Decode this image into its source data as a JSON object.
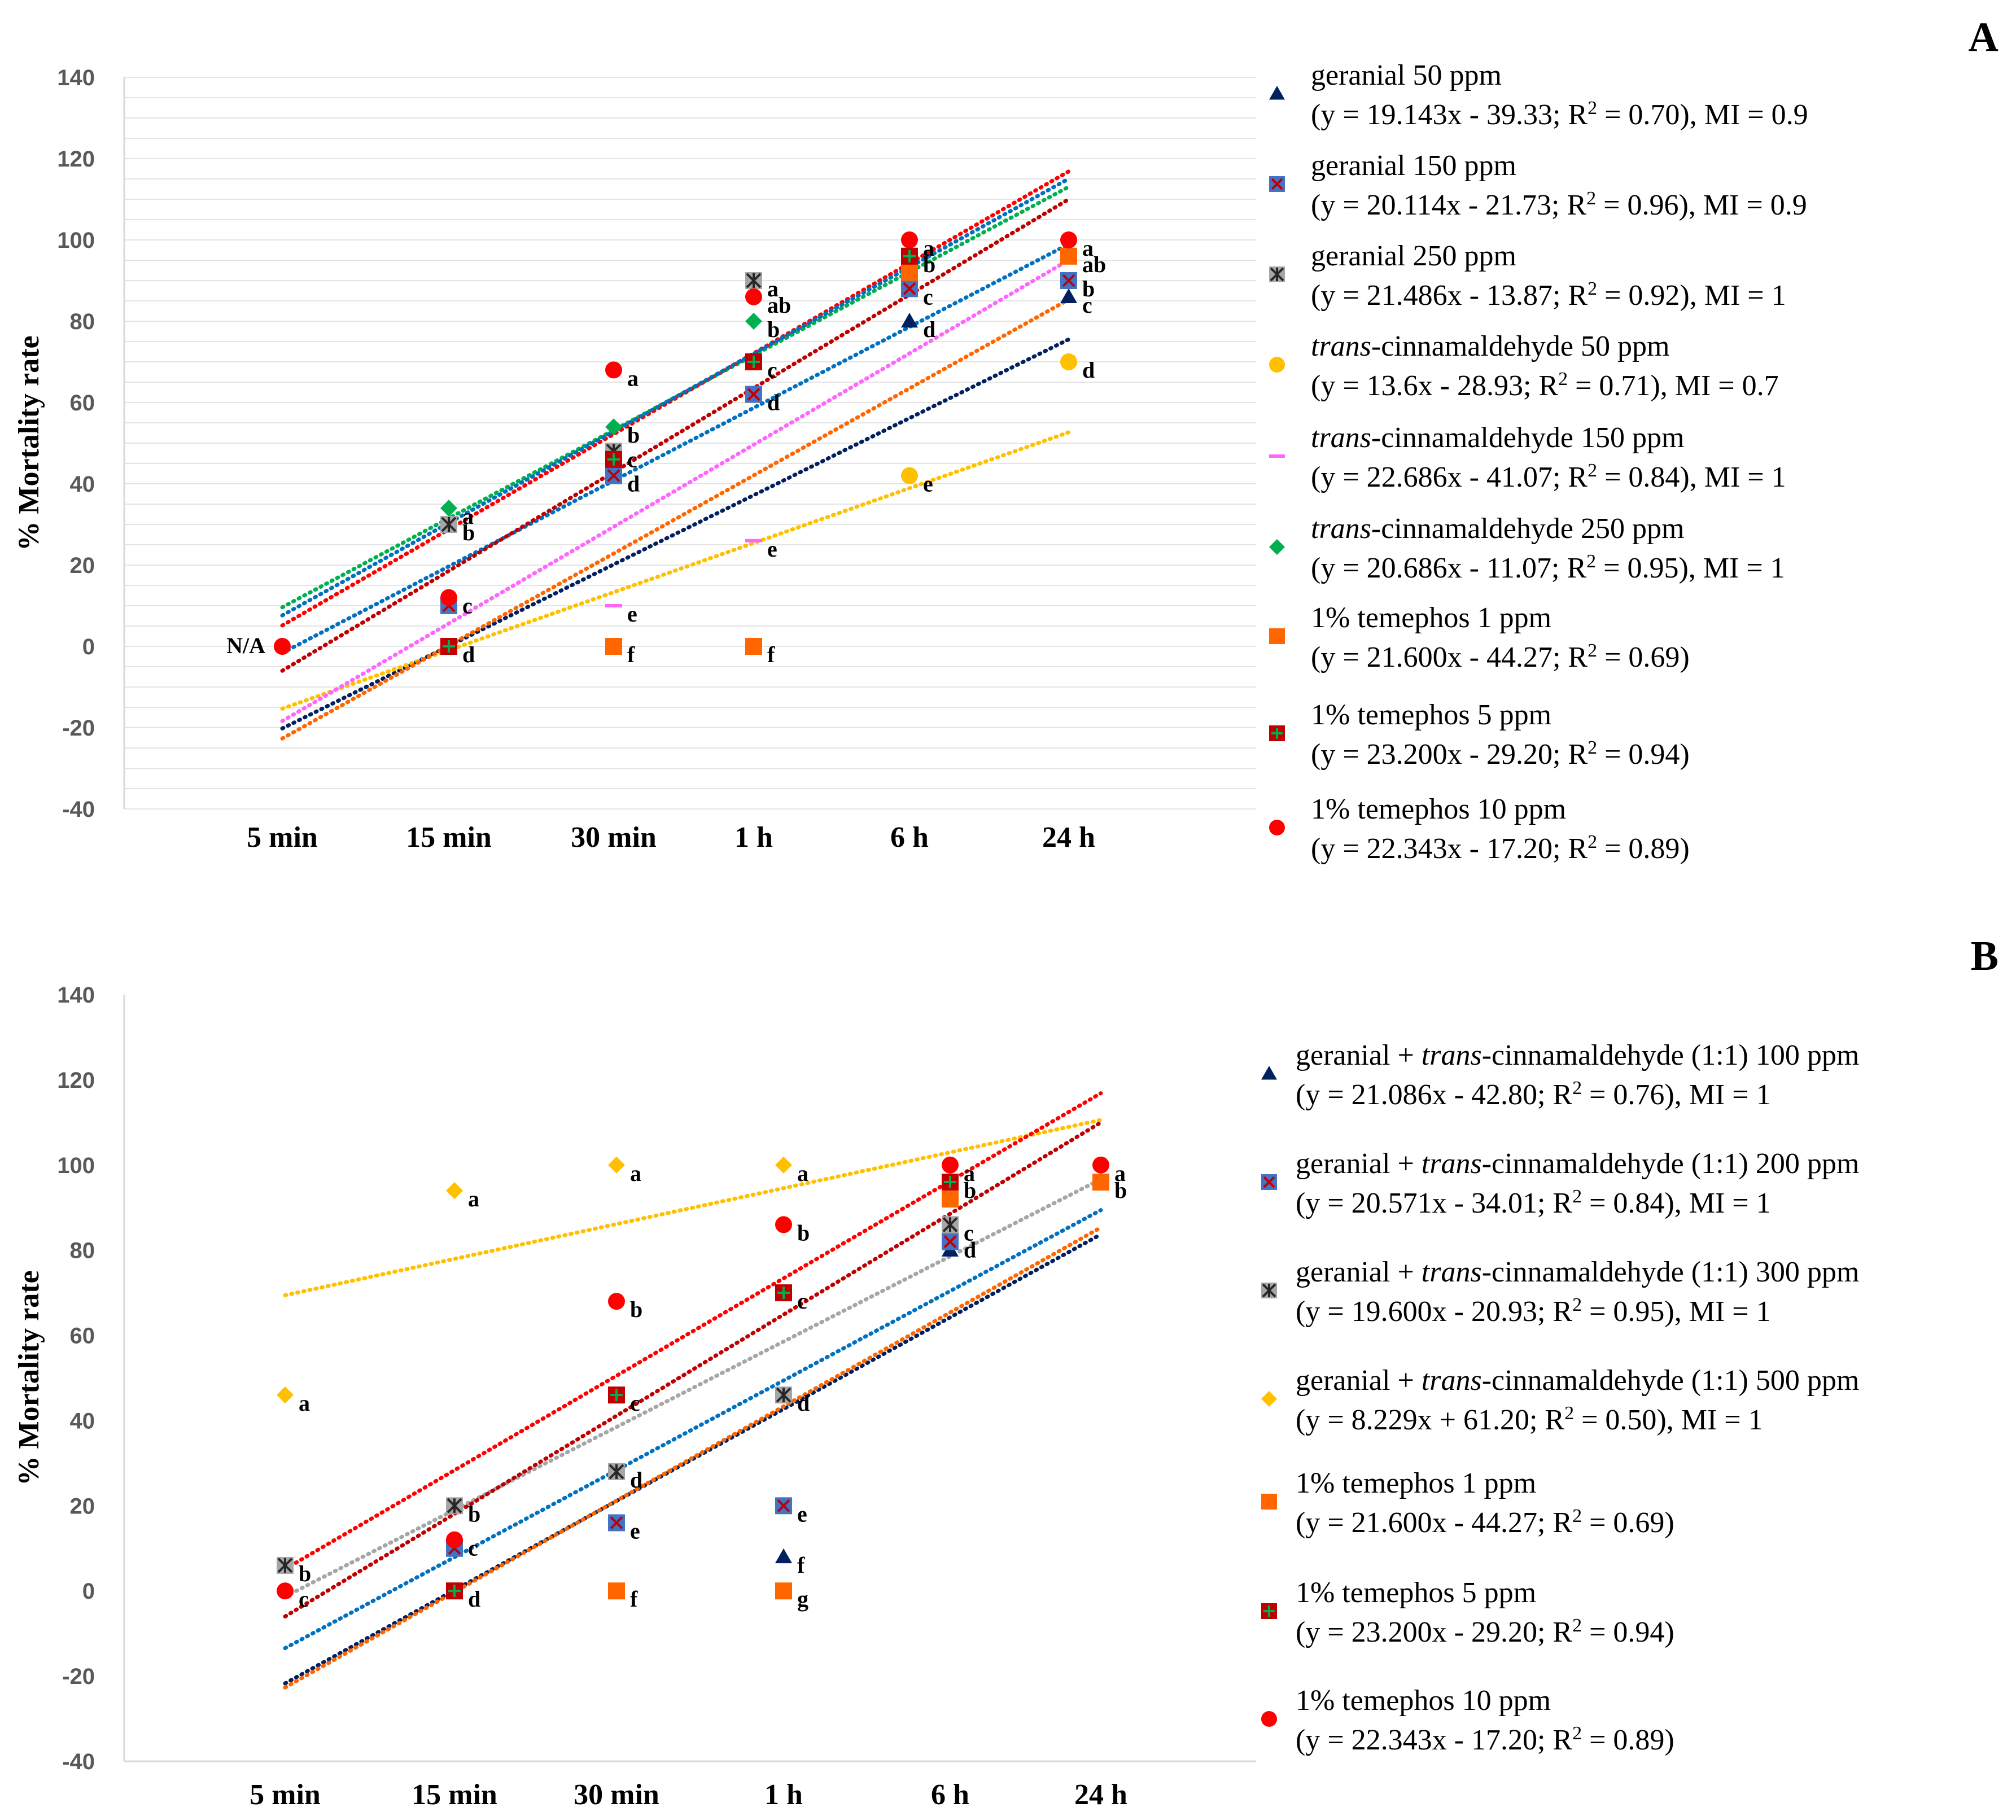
{
  "chart_data": [
    {
      "panel": "A",
      "type": "scatter",
      "ylabel": "% Mortality  rate",
      "xlabel": "",
      "ylim": [
        -40,
        140
      ],
      "yticks": [
        -40,
        -20,
        0,
        20,
        40,
        60,
        80,
        100,
        120,
        140
      ],
      "categories": [
        "5 min",
        "15 min",
        "30 min",
        "1 h",
        "6 h",
        "24 h"
      ],
      "grid": true,
      "legend_position": "right",
      "series": [
        {
          "name": "geranial 50 ppm",
          "eq": "(y = 19.143x - 39.33; R",
          "r2": " = 0.70), MI = 0.9",
          "marker": "triangle",
          "color": "#002060",
          "values": [
            null,
            null,
            null,
            null,
            80,
            86
          ],
          "labels": [
            null,
            null,
            null,
            null,
            "d",
            "c"
          ],
          "trend": [
            19.143,
            -39.33
          ]
        },
        {
          "name": "geranial 150 ppm",
          "eq": "(y = 20.114x - 21.73; R",
          "r2": " = 0.96), MI = 0.9",
          "marker": "xsquare",
          "color": "#4472C4",
          "values": [
            null,
            10,
            42,
            62,
            88,
            90
          ],
          "labels": [
            null,
            null,
            "d",
            "d",
            "c",
            "b"
          ],
          "trend": [
            20.114,
            -21.73
          ]
        },
        {
          "name": "geranial 250 ppm",
          "eq": "(y = 21.486x - 13.87; R",
          "r2": " = 0.92), MI = 1",
          "marker": "asterisk",
          "color": "#404040",
          "values": [
            null,
            30,
            48,
            90,
            null,
            null
          ],
          "labels": [
            null,
            "b",
            "c",
            "a",
            null,
            null
          ],
          "trend": [
            null,
            null
          ]
        },
        {
          "name": "trans-cinnamaldehyde 50 ppm",
          "italic": "trans",
          "rest": "-cinnamaldehyde 50 ppm",
          "eq": "(y = 13.6x - 28.93; R",
          "r2": " = 0.71), MI = 0.7",
          "marker": "circle",
          "color": "#FFC000",
          "values": [
            null,
            null,
            null,
            null,
            42,
            70
          ],
          "labels": [
            null,
            null,
            null,
            null,
            "e",
            "d"
          ],
          "trend": [
            13.6,
            -28.93
          ]
        },
        {
          "name": "trans-cinnamaldehyde 150 ppm",
          "italic": "trans",
          "rest": "-cinnamaldehyde 150 ppm",
          "eq": "(y = 22.686x - 41.07; R",
          "r2": " = 0.84), MI = 1",
          "marker": "dash",
          "color": "#FF66FF",
          "values": [
            null,
            null,
            10,
            26,
            null,
            null
          ],
          "labels": [
            null,
            null,
            "e",
            "e",
            null,
            null
          ],
          "trend": [
            22.686,
            -41.07
          ]
        },
        {
          "name": "trans-cinnamaldehyde 250 ppm",
          "italic": "trans",
          "rest": "-cinnamaldehyde 250 ppm",
          "eq": "(y = 20.686x - 11.07; R",
          "r2": " = 0.95), MI = 1",
          "marker": "diamond",
          "color": "#00B050",
          "values": [
            null,
            34,
            54,
            80,
            96,
            null
          ],
          "labels": [
            null,
            "a",
            "b",
            "b",
            null,
            null
          ],
          "trend": [
            20.686,
            -11.07
          ]
        },
        {
          "name": "1% temephos 1 ppm",
          "eq": "(y = 21.600x - 44.27; R",
          "r2": " = 0.69)",
          "marker": "square",
          "color": "#FF6600",
          "values": [
            null,
            null,
            0,
            0,
            92,
            96
          ],
          "labels": [
            null,
            null,
            "f",
            "f",
            null,
            "ab"
          ],
          "trend": [
            21.6,
            -44.27
          ]
        },
        {
          "name": "1% temephos 5 ppm",
          "eq": "(y = 23.200x - 29.20; R",
          "r2": " = 0.94)",
          "marker": "plussquare",
          "color": "#C00000",
          "values": [
            null,
            0,
            46,
            70,
            96,
            null
          ],
          "labels": [
            null,
            "d",
            null,
            "c",
            "b",
            null
          ],
          "trend": [
            23.2,
            -29.2
          ]
        },
        {
          "name": "1% temephos 10 ppm",
          "eq": "(y = 22.343x - 17.20; R",
          "r2": " = 0.89)",
          "marker": "circle",
          "color": "#FF0000",
          "values": [
            0,
            12,
            68,
            86,
            100,
            100
          ],
          "labels": [
            "N/A",
            "c",
            "a",
            "ab",
            "a",
            "a"
          ],
          "trend": [
            22.343,
            -17.2
          ]
        }
      ],
      "extra_trend": {
        "color": "#0070C0",
        "trend": [
          21.486,
          -13.87
        ]
      }
    },
    {
      "panel": "B",
      "type": "scatter",
      "ylabel": "% Mortality rate",
      "xlabel": "",
      "ylim": [
        -40,
        140
      ],
      "yticks": [
        -40,
        -20,
        0,
        20,
        40,
        60,
        80,
        100,
        120,
        140
      ],
      "categories": [
        "5 min",
        "15 min",
        "30 min",
        "1 h",
        "6 h",
        "24 h"
      ],
      "grid": false,
      "legend_position": "right",
      "series": [
        {
          "name": "geranial + trans-cinnamaldehyde (1:1) 100 ppm",
          "pre": "geranial + ",
          "italic": "trans",
          "rest": "-cinnamaldehyde (1:1) 100 ppm",
          "eq": "(y = 21.086x - 42.80; R",
          "r2": " = 0.76), MI = 1",
          "marker": "triangle",
          "color": "#002060",
          "values": [
            null,
            null,
            null,
            8,
            80,
            null
          ],
          "labels": [
            null,
            null,
            null,
            "f",
            null,
            null
          ],
          "trend": [
            21.086,
            -42.8
          ]
        },
        {
          "name": "geranial + trans-cinnamaldehyde (1:1) 200 ppm",
          "pre": "geranial + ",
          "italic": "trans",
          "rest": "-cinnamaldehyde (1:1) 200 ppm",
          "eq": "(y = 20.571x - 34.01; R",
          "r2": " = 0.84), MI = 1",
          "marker": "xsquare",
          "color": "#4472C4",
          "values": [
            null,
            10,
            16,
            20,
            82,
            null
          ],
          "labels": [
            null,
            null,
            "e",
            "e",
            "d",
            null
          ],
          "trend": [
            20.571,
            -34.01
          ]
        },
        {
          "name": "geranial + trans-cinnamaldehyde (1:1) 300 ppm",
          "pre": "geranial + ",
          "italic": "trans",
          "rest": "-cinnamaldehyde (1:1) 300 ppm",
          "eq": "(y = 19.600x - 20.93; R",
          "r2": " = 0.95), MI = 1",
          "marker": "asterisk",
          "color": "#404040",
          "values": [
            6,
            20,
            28,
            46,
            86,
            null
          ],
          "labels": [
            "b",
            "b",
            "d",
            "d",
            "c",
            null
          ],
          "trend": [
            19.6,
            -20.93
          ]
        },
        {
          "name": "geranial + trans-cinnamaldehyde (1:1) 500 ppm",
          "pre": "geranial + ",
          "italic": "trans",
          "rest": "-cinnamaldehyde (1:1) 500 ppm",
          "eq": "(y = 8.229x + 61.20; R",
          "r2": " = 0.50), MI = 1",
          "marker": "diamond",
          "color": "#FFC000",
          "values": [
            46,
            94,
            100,
            100,
            null,
            null
          ],
          "labels": [
            "a",
            "a",
            "a",
            "a",
            null,
            null
          ],
          "trend": [
            8.229,
            61.2
          ]
        },
        {
          "name": "1% temephos 1 ppm",
          "eq": "(y = 21.600x - 44.27; R",
          "r2": " = 0.69)",
          "marker": "square",
          "color": "#FF6600",
          "values": [
            null,
            null,
            0,
            0,
            92,
            96
          ],
          "labels": [
            null,
            null,
            "f",
            "g",
            null,
            "b"
          ],
          "trend": [
            21.6,
            -44.27
          ]
        },
        {
          "name": "1% temephos 5 ppm",
          "eq": "(y = 23.200x - 29.20; R",
          "r2": " = 0.94)",
          "marker": "plussquare",
          "color": "#C00000",
          "values": [
            null,
            0,
            46,
            70,
            96,
            null
          ],
          "labels": [
            null,
            "d",
            "c",
            "c",
            "b",
            null
          ],
          "trend": [
            23.2,
            -29.2
          ]
        },
        {
          "name": "1% temephos 10 ppm",
          "eq": "(y = 22.343x - 17.20; R",
          "r2": " = 0.89)",
          "marker": "circle",
          "color": "#FF0000",
          "values": [
            0,
            12,
            68,
            86,
            100,
            100
          ],
          "labels": [
            "c",
            "c",
            "b",
            "b",
            "a",
            "a"
          ],
          "trend": [
            22.343,
            -17.2
          ]
        }
      ]
    }
  ]
}
